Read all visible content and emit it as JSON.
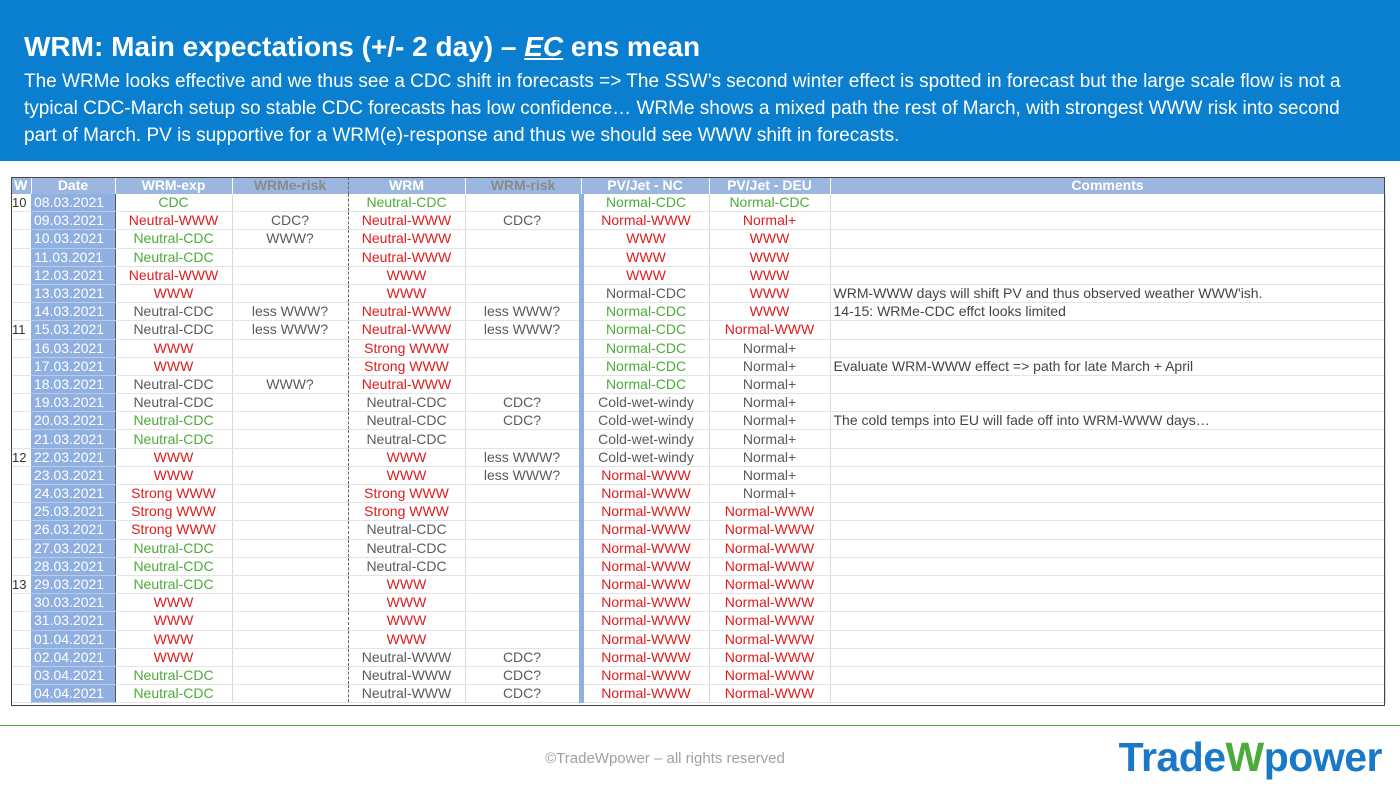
{
  "header": {
    "title_prefix": "WRM: Main expectations (+/- 2 day) – ",
    "title_ec": "EC",
    "title_suffix": " ens mean",
    "subtitle": "The WRMe looks effective and we thus see a CDC shift in forecasts => The SSW’s second winter effect is spotted in forecast but the large scale flow is not a typical CDC-March setup so stable CDC forecasts has low confidence… WRMe shows a mixed path the rest of March, with strongest WWW risk into second part of March. PV is supportive for a WRM(e)-response and thus we should see WWW shift in forecasts."
  },
  "table": {
    "columns": [
      "W",
      "Date",
      "WRM-exp",
      "WRMe-risk",
      "WRM",
      "WRM-risk",
      "PV/Jet - NC",
      "PV/Jet - DEU",
      "Comments"
    ],
    "colors": {
      "green": "#4cab3a",
      "red": "#e01b1b",
      "gray": "#5a5a5a",
      "header_bg": "#9bb7e0",
      "date_bg": "#8fb0e0"
    },
    "rows": [
      {
        "w": "10",
        "date": "08.03.2021",
        "wrm_exp": "CDC",
        "wrm_exp_c": "green",
        "wrme_risk": "",
        "wrm": "Neutral-CDC",
        "wrm_c": "green",
        "wrm_risk": "",
        "pv_nc": "Normal-CDC",
        "pv_nc_c": "green",
        "pv_deu": "Normal-CDC",
        "pv_deu_c": "green",
        "comment": ""
      },
      {
        "w": "",
        "date": "09.03.2021",
        "wrm_exp": "Neutral-WWW",
        "wrm_exp_c": "red",
        "wrme_risk": "CDC?",
        "wrm": "Neutral-WWW",
        "wrm_c": "red",
        "wrm_risk": "CDC?",
        "pv_nc": "Normal-WWW",
        "pv_nc_c": "red",
        "pv_deu": "Normal+",
        "pv_deu_c": "red",
        "comment": ""
      },
      {
        "w": "",
        "date": "10.03.2021",
        "wrm_exp": "Neutral-CDC",
        "wrm_exp_c": "green",
        "wrme_risk": "WWW?",
        "wrm": "Neutral-WWW",
        "wrm_c": "red",
        "wrm_risk": "",
        "pv_nc": "WWW",
        "pv_nc_c": "red",
        "pv_deu": "WWW",
        "pv_deu_c": "red",
        "comment": ""
      },
      {
        "w": "",
        "date": "11.03.2021",
        "wrm_exp": "Neutral-CDC",
        "wrm_exp_c": "green",
        "wrme_risk": "",
        "wrm": "Neutral-WWW",
        "wrm_c": "red",
        "wrm_risk": "",
        "pv_nc": "WWW",
        "pv_nc_c": "red",
        "pv_deu": "WWW",
        "pv_deu_c": "red",
        "comment": ""
      },
      {
        "w": "",
        "date": "12.03.2021",
        "wrm_exp": "Neutral-WWW",
        "wrm_exp_c": "red",
        "wrme_risk": "",
        "wrm": "WWW",
        "wrm_c": "red",
        "wrm_risk": "",
        "pv_nc": "WWW",
        "pv_nc_c": "red",
        "pv_deu": "WWW",
        "pv_deu_c": "red",
        "comment": ""
      },
      {
        "w": "",
        "date": "13.03.2021",
        "wrm_exp": "WWW",
        "wrm_exp_c": "red",
        "wrme_risk": "",
        "wrm": "WWW",
        "wrm_c": "red",
        "wrm_risk": "",
        "pv_nc": "Normal-CDC",
        "pv_nc_c": "gray",
        "pv_deu": "WWW",
        "pv_deu_c": "red",
        "comment": "WRM-WWW days will shift PV and thus observed weather WWW'ish."
      },
      {
        "w": "",
        "date": "14.03.2021",
        "wrm_exp": "Neutral-CDC",
        "wrm_exp_c": "gray",
        "wrme_risk": "less WWW?",
        "wrm": "Neutral-WWW",
        "wrm_c": "red",
        "wrm_risk": "less WWW?",
        "pv_nc": "Normal-CDC",
        "pv_nc_c": "green",
        "pv_deu": "WWW",
        "pv_deu_c": "red",
        "comment": "14-15: WRMe-CDC effct looks limited"
      },
      {
        "w": "11",
        "date": "15.03.2021",
        "wrm_exp": "Neutral-CDC",
        "wrm_exp_c": "gray",
        "wrme_risk": "less WWW?",
        "wrm": "Neutral-WWW",
        "wrm_c": "red",
        "wrm_risk": "less WWW?",
        "pv_nc": "Normal-CDC",
        "pv_nc_c": "green",
        "pv_deu": "Normal-WWW",
        "pv_deu_c": "red",
        "comment": ""
      },
      {
        "w": "",
        "date": "16.03.2021",
        "wrm_exp": "WWW",
        "wrm_exp_c": "red",
        "wrme_risk": "",
        "wrm": "Strong WWW",
        "wrm_c": "red",
        "wrm_risk": "",
        "pv_nc": "Normal-CDC",
        "pv_nc_c": "green",
        "pv_deu": "Normal+",
        "pv_deu_c": "gray",
        "comment": ""
      },
      {
        "w": "",
        "date": "17.03.2021",
        "wrm_exp": "WWW",
        "wrm_exp_c": "red",
        "wrme_risk": "",
        "wrm": "Strong WWW",
        "wrm_c": "red",
        "wrm_risk": "",
        "pv_nc": "Normal-CDC",
        "pv_nc_c": "green",
        "pv_deu": "Normal+",
        "pv_deu_c": "gray",
        "comment": "Evaluate WRM-WWW effect => path for late March + April"
      },
      {
        "w": "",
        "date": "18.03.2021",
        "wrm_exp": "Neutral-CDC",
        "wrm_exp_c": "gray",
        "wrme_risk": "WWW?",
        "wrm": "Neutral-WWW",
        "wrm_c": "red",
        "wrm_risk": "",
        "pv_nc": "Normal-CDC",
        "pv_nc_c": "green",
        "pv_deu": "Normal+",
        "pv_deu_c": "gray",
        "comment": ""
      },
      {
        "w": "",
        "date": "19.03.2021",
        "wrm_exp": "Neutral-CDC",
        "wrm_exp_c": "gray",
        "wrme_risk": "",
        "wrm": "Neutral-CDC",
        "wrm_c": "gray",
        "wrm_risk": "CDC?",
        "pv_nc": "Cold-wet-windy",
        "pv_nc_c": "gray",
        "pv_deu": "Normal+",
        "pv_deu_c": "gray",
        "comment": ""
      },
      {
        "w": "",
        "date": "20.03.2021",
        "wrm_exp": "Neutral-CDC",
        "wrm_exp_c": "green",
        "wrme_risk": "",
        "wrm": "Neutral-CDC",
        "wrm_c": "gray",
        "wrm_risk": "CDC?",
        "pv_nc": "Cold-wet-windy",
        "pv_nc_c": "gray",
        "pv_deu": "Normal+",
        "pv_deu_c": "gray",
        "comment": "The cold temps into EU will fade off into WRM-WWW days…"
      },
      {
        "w": "",
        "date": "21.03.2021",
        "wrm_exp": "Neutral-CDC",
        "wrm_exp_c": "green",
        "wrme_risk": "",
        "wrm": "Neutral-CDC",
        "wrm_c": "gray",
        "wrm_risk": "",
        "pv_nc": "Cold-wet-windy",
        "pv_nc_c": "gray",
        "pv_deu": "Normal+",
        "pv_deu_c": "gray",
        "comment": ""
      },
      {
        "w": "12",
        "date": "22.03.2021",
        "wrm_exp": "WWW",
        "wrm_exp_c": "red",
        "wrme_risk": "",
        "wrm": "WWW",
        "wrm_c": "red",
        "wrm_risk": "less WWW?",
        "pv_nc": "Cold-wet-windy",
        "pv_nc_c": "gray",
        "pv_deu": "Normal+",
        "pv_deu_c": "gray",
        "comment": ""
      },
      {
        "w": "",
        "date": "23.03.2021",
        "wrm_exp": "WWW",
        "wrm_exp_c": "red",
        "wrme_risk": "",
        "wrm": "WWW",
        "wrm_c": "red",
        "wrm_risk": "less WWW?",
        "pv_nc": "Normal-WWW",
        "pv_nc_c": "red",
        "pv_deu": "Normal+",
        "pv_deu_c": "gray",
        "comment": ""
      },
      {
        "w": "",
        "date": "24.03.2021",
        "wrm_exp": "Strong WWW",
        "wrm_exp_c": "red",
        "wrme_risk": "",
        "wrm": "Strong WWW",
        "wrm_c": "red",
        "wrm_risk": "",
        "pv_nc": "Normal-WWW",
        "pv_nc_c": "red",
        "pv_deu": "Normal+",
        "pv_deu_c": "gray",
        "comment": ""
      },
      {
        "w": "",
        "date": "25.03.2021",
        "wrm_exp": "Strong WWW",
        "wrm_exp_c": "red",
        "wrme_risk": "",
        "wrm": "Strong WWW",
        "wrm_c": "red",
        "wrm_risk": "",
        "pv_nc": "Normal-WWW",
        "pv_nc_c": "red",
        "pv_deu": "Normal-WWW",
        "pv_deu_c": "red",
        "comment": ""
      },
      {
        "w": "",
        "date": "26.03.2021",
        "wrm_exp": "Strong WWW",
        "wrm_exp_c": "red",
        "wrme_risk": "",
        "wrm": "Neutral-CDC",
        "wrm_c": "gray",
        "wrm_risk": "",
        "pv_nc": "Normal-WWW",
        "pv_nc_c": "red",
        "pv_deu": "Normal-WWW",
        "pv_deu_c": "red",
        "comment": ""
      },
      {
        "w": "",
        "date": "27.03.2021",
        "wrm_exp": "Neutral-CDC",
        "wrm_exp_c": "green",
        "wrme_risk": "",
        "wrm": "Neutral-CDC",
        "wrm_c": "gray",
        "wrm_risk": "",
        "pv_nc": "Normal-WWW",
        "pv_nc_c": "red",
        "pv_deu": "Normal-WWW",
        "pv_deu_c": "red",
        "comment": ""
      },
      {
        "w": "",
        "date": "28.03.2021",
        "wrm_exp": "Neutral-CDC",
        "wrm_exp_c": "green",
        "wrme_risk": "",
        "wrm": "Neutral-CDC",
        "wrm_c": "gray",
        "wrm_risk": "",
        "pv_nc": "Normal-WWW",
        "pv_nc_c": "red",
        "pv_deu": "Normal-WWW",
        "pv_deu_c": "red",
        "comment": ""
      },
      {
        "w": "13",
        "date": "29.03.2021",
        "wrm_exp": "Neutral-CDC",
        "wrm_exp_c": "green",
        "wrme_risk": "",
        "wrm": "WWW",
        "wrm_c": "red",
        "wrm_risk": "",
        "pv_nc": "Normal-WWW",
        "pv_nc_c": "red",
        "pv_deu": "Normal-WWW",
        "pv_deu_c": "red",
        "comment": ""
      },
      {
        "w": "",
        "date": "30.03.2021",
        "wrm_exp": "WWW",
        "wrm_exp_c": "red",
        "wrme_risk": "",
        "wrm": "WWW",
        "wrm_c": "red",
        "wrm_risk": "",
        "pv_nc": "Normal-WWW",
        "pv_nc_c": "red",
        "pv_deu": "Normal-WWW",
        "pv_deu_c": "red",
        "comment": ""
      },
      {
        "w": "",
        "date": "31.03.2021",
        "wrm_exp": "WWW",
        "wrm_exp_c": "red",
        "wrme_risk": "",
        "wrm": "WWW",
        "wrm_c": "red",
        "wrm_risk": "",
        "pv_nc": "Normal-WWW",
        "pv_nc_c": "red",
        "pv_deu": "Normal-WWW",
        "pv_deu_c": "red",
        "comment": ""
      },
      {
        "w": "",
        "date": "01.04.2021",
        "wrm_exp": "WWW",
        "wrm_exp_c": "red",
        "wrme_risk": "",
        "wrm": "WWW",
        "wrm_c": "red",
        "wrm_risk": "",
        "pv_nc": "Normal-WWW",
        "pv_nc_c": "red",
        "pv_deu": "Normal-WWW",
        "pv_deu_c": "red",
        "comment": ""
      },
      {
        "w": "",
        "date": "02.04.2021",
        "wrm_exp": "WWW",
        "wrm_exp_c": "red",
        "wrme_risk": "",
        "wrm": "Neutral-WWW",
        "wrm_c": "gray",
        "wrm_risk": "CDC?",
        "pv_nc": "Normal-WWW",
        "pv_nc_c": "red",
        "pv_deu": "Normal-WWW",
        "pv_deu_c": "red",
        "comment": ""
      },
      {
        "w": "",
        "date": "03.04.2021",
        "wrm_exp": "Neutral-CDC",
        "wrm_exp_c": "green",
        "wrme_risk": "",
        "wrm": "Neutral-WWW",
        "wrm_c": "gray",
        "wrm_risk": "CDC?",
        "pv_nc": "Normal-WWW",
        "pv_nc_c": "red",
        "pv_deu": "Normal-WWW",
        "pv_deu_c": "red",
        "comment": ""
      },
      {
        "w": "",
        "date": "04.04.2021",
        "wrm_exp": "Neutral-CDC",
        "wrm_exp_c": "green",
        "wrme_risk": "",
        "wrm": "Neutral-WWW",
        "wrm_c": "gray",
        "wrm_risk": "CDC?",
        "pv_nc": "Normal-WWW",
        "pv_nc_c": "red",
        "pv_deu": "Normal-WWW",
        "pv_deu_c": "red",
        "comment": ""
      }
    ]
  },
  "footer": {
    "copyright": "©TradeWpower – all rights reserved",
    "logo_left": "Trade",
    "logo_w": "W",
    "logo_right": "power"
  }
}
